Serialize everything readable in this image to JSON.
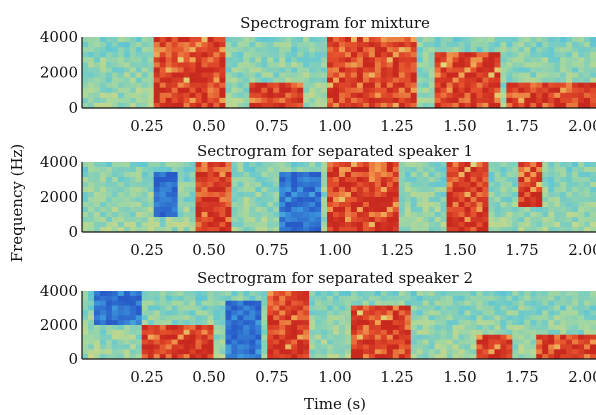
{
  "figure": {
    "ylabel": "Frequency (Hz)",
    "xlabel": "Time (s)"
  },
  "chart_data": [
    {
      "type": "heatmap",
      "title": "Spectrogram for mixture",
      "x_ticks": [
        "0.25",
        "0.50",
        "0.75",
        "1.00",
        "1.25",
        "1.50",
        "1.75",
        "2.00"
      ],
      "y_ticks": [
        "0",
        "2000",
        "4000"
      ],
      "xlim": [
        0,
        2.2
      ],
      "ylim": [
        0,
        4000
      ],
      "colormap": "jet",
      "high_energy_regions": [
        {
          "t": [
            0.3,
            0.62
          ],
          "f": [
            0,
            4000
          ]
        },
        {
          "t": [
            0.72,
            0.95
          ],
          "f": [
            0,
            1500
          ]
        },
        {
          "t": [
            1.05,
            1.42
          ],
          "f": [
            0,
            4000
          ]
        },
        {
          "t": [
            1.5,
            1.78
          ],
          "f": [
            0,
            3000
          ]
        },
        {
          "t": [
            1.82,
            2.2
          ],
          "f": [
            0,
            1500
          ]
        }
      ]
    },
    {
      "type": "heatmap",
      "title": "Sectrogram for separated speaker 1",
      "x_ticks": [
        "0.25",
        "0.50",
        "0.75",
        "1.00",
        "1.25",
        "1.50",
        "1.75",
        "2.00"
      ],
      "y_ticks": [
        "0",
        "2000",
        "4000"
      ],
      "xlim": [
        0,
        2.2
      ],
      "ylim": [
        0,
        4000
      ],
      "colormap": "jet",
      "high_energy_regions": [
        {
          "t": [
            0.48,
            0.65
          ],
          "f": [
            0,
            4000
          ]
        },
        {
          "t": [
            1.05,
            1.35
          ],
          "f": [
            0,
            4000
          ]
        },
        {
          "t": [
            1.55,
            1.75
          ],
          "f": [
            0,
            4000
          ]
        },
        {
          "t": [
            1.88,
            1.98
          ],
          "f": [
            1500,
            4000
          ]
        }
      ],
      "low_energy_regions": [
        {
          "t": [
            0.3,
            0.42
          ],
          "f": [
            1000,
            3500
          ]
        },
        {
          "t": [
            0.85,
            1.02
          ],
          "f": [
            0,
            3500
          ]
        }
      ]
    },
    {
      "type": "heatmap",
      "title": "Sectrogram for separated speaker 2",
      "x_ticks": [
        "0.25",
        "0.50",
        "0.75",
        "1.00",
        "1.25",
        "1.50",
        "1.75",
        "2.00"
      ],
      "y_ticks": [
        "0",
        "2000",
        "4000"
      ],
      "xlim": [
        0,
        2.2
      ],
      "ylim": [
        0,
        4000
      ],
      "colormap": "jet",
      "high_energy_regions": [
        {
          "t": [
            0.25,
            0.55
          ],
          "f": [
            0,
            2000
          ]
        },
        {
          "t": [
            0.8,
            0.98
          ],
          "f": [
            0,
            4000
          ]
        },
        {
          "t": [
            1.15,
            1.4
          ],
          "f": [
            0,
            3000
          ]
        },
        {
          "t": [
            1.7,
            1.85
          ],
          "f": [
            0,
            1500
          ]
        },
        {
          "t": [
            1.95,
            2.2
          ],
          "f": [
            0,
            1500
          ]
        }
      ],
      "low_energy_regions": [
        {
          "t": [
            0.05,
            0.25
          ],
          "f": [
            2000,
            4000
          ]
        },
        {
          "t": [
            0.62,
            0.78
          ],
          "f": [
            0,
            3500
          ]
        }
      ]
    }
  ]
}
